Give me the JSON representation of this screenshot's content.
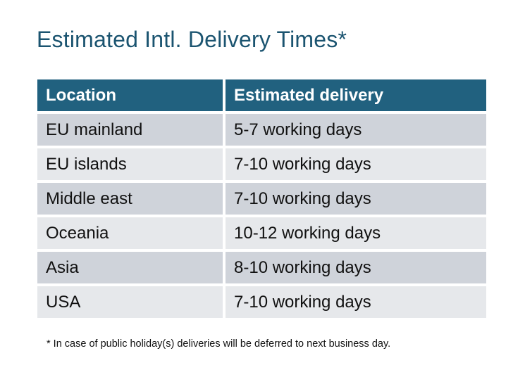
{
  "title": "Estimated Intl. Delivery Times*",
  "table": {
    "headers": [
      "Location",
      "Estimated delivery"
    ],
    "rows": [
      [
        "EU mainland",
        "5-7 working days"
      ],
      [
        "EU islands",
        "7-10 working days"
      ],
      [
        "Middle east",
        "7-10 working days"
      ],
      [
        "Oceania",
        "10-12 working days"
      ],
      [
        "Asia",
        "8-10 working days"
      ],
      [
        "USA",
        "7-10 working days"
      ]
    ]
  },
  "footnote": "* In case of public holiday(s) deliveries will be deferred to next business day.",
  "colors": {
    "header": "#21617F",
    "title": "#1B5470",
    "row_odd": "#CFD3DA",
    "row_even": "#E6E8EB"
  }
}
